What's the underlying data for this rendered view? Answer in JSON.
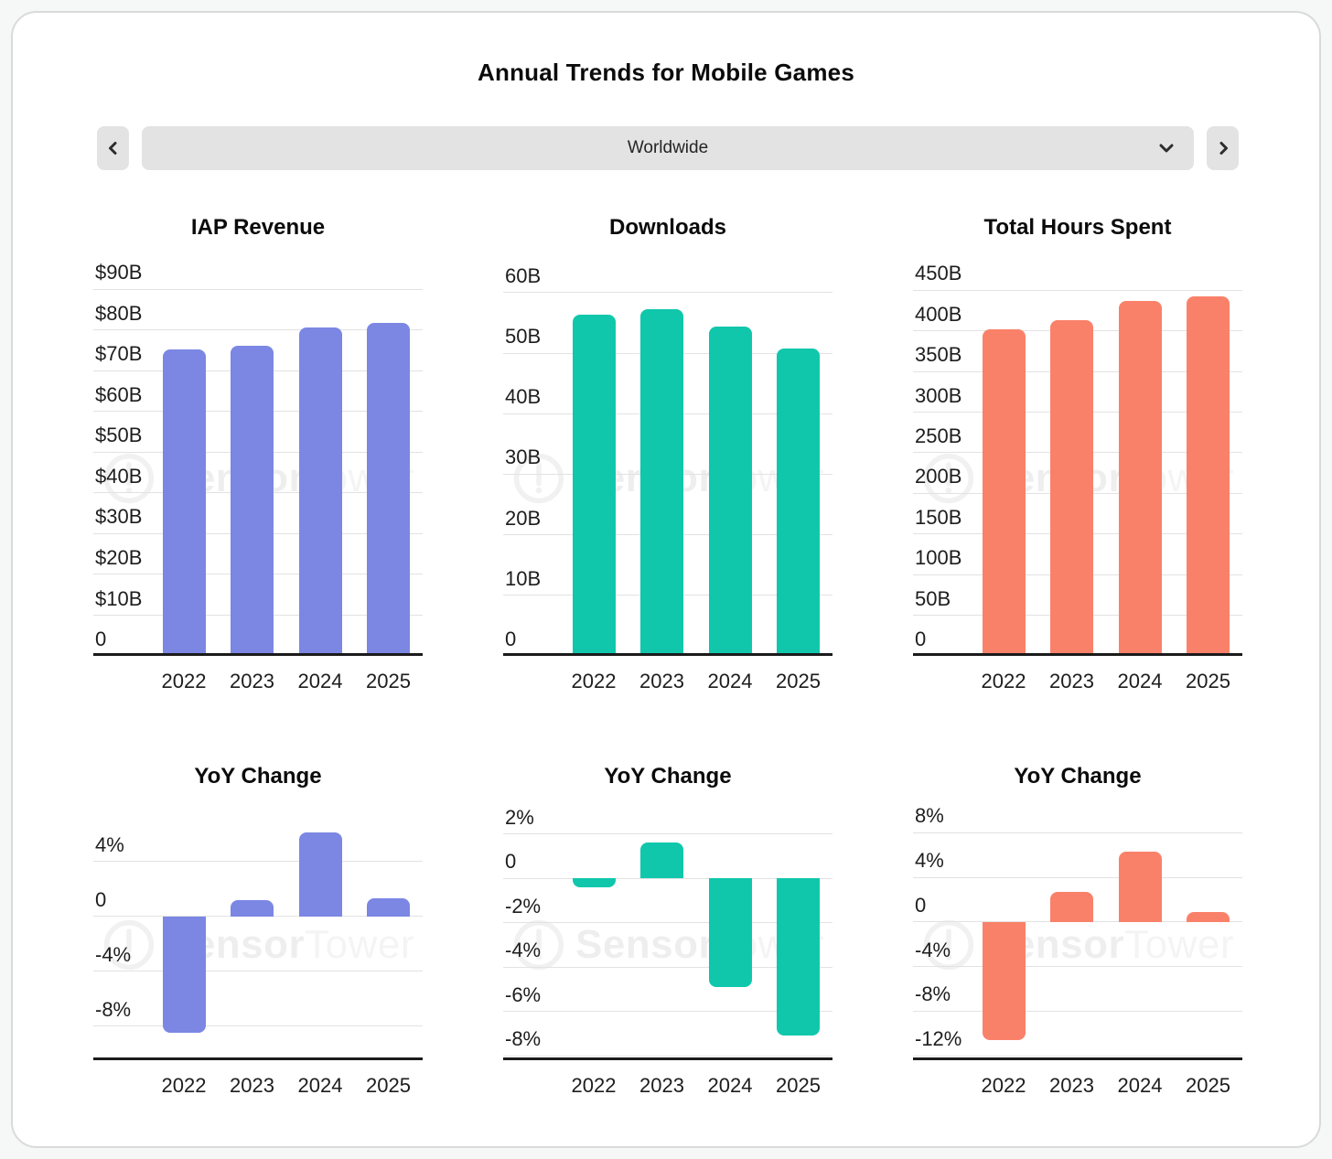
{
  "page": {
    "title": "Annual Trends for Mobile Games"
  },
  "nav": {
    "region_value": "Worldwide",
    "prev_icon": "chevron-left",
    "next_icon": "chevron-right",
    "dropdown_icon": "chevron-down"
  },
  "watermark": {
    "brand_bold": "Sensor",
    "brand_light": "Tower"
  },
  "chart_data": [
    {
      "id": "iap-revenue",
      "type": "bar",
      "row": 1,
      "title": "IAP Revenue",
      "color": "#7B87E3",
      "categories": [
        "2022",
        "2023",
        "2024",
        "2025"
      ],
      "values": [
        75.3,
        76.2,
        80.7,
        81.8
      ],
      "unit": "USD billions",
      "ylim": [
        0,
        91
      ],
      "yticks": [
        {
          "v": 90,
          "label": "$90B"
        },
        {
          "v": 80,
          "label": "$80B"
        },
        {
          "v": 70,
          "label": "$70B"
        },
        {
          "v": 60,
          "label": "$60B"
        },
        {
          "v": 50,
          "label": "$50B"
        },
        {
          "v": 40,
          "label": "$40B"
        },
        {
          "v": 30,
          "label": "$30B"
        },
        {
          "v": 20,
          "label": "$20B"
        },
        {
          "v": 10,
          "label": "$10B"
        },
        {
          "v": 0,
          "label": "0"
        }
      ]
    },
    {
      "id": "downloads",
      "type": "bar",
      "row": 1,
      "title": "Downloads",
      "color": "#10C7AC",
      "categories": [
        "2022",
        "2023",
        "2024",
        "2025"
      ],
      "values": [
        56.4,
        57.3,
        54.4,
        50.8
      ],
      "unit": "billions",
      "ylim": [
        0,
        61.2
      ],
      "yticks": [
        {
          "v": 60,
          "label": "60B"
        },
        {
          "v": 50,
          "label": "50B"
        },
        {
          "v": 40,
          "label": "40B"
        },
        {
          "v": 30,
          "label": "30B"
        },
        {
          "v": 20,
          "label": "20B"
        },
        {
          "v": 10,
          "label": "10B"
        },
        {
          "v": 0,
          "label": "0"
        }
      ]
    },
    {
      "id": "total-hours-spent",
      "type": "bar",
      "row": 1,
      "title": "Total Hours Spent",
      "color": "#FA8169",
      "categories": [
        "2022",
        "2023",
        "2024",
        "2025"
      ],
      "values": [
        402,
        413,
        437,
        442
      ],
      "unit": "billions",
      "ylim": [
        0,
        456
      ],
      "yticks": [
        {
          "v": 450,
          "label": "450B"
        },
        {
          "v": 400,
          "label": "400B"
        },
        {
          "v": 350,
          "label": "350B"
        },
        {
          "v": 300,
          "label": "300B"
        },
        {
          "v": 250,
          "label": "250B"
        },
        {
          "v": 200,
          "label": "200B"
        },
        {
          "v": 150,
          "label": "150B"
        },
        {
          "v": 100,
          "label": "100B"
        },
        {
          "v": 50,
          "label": "50B"
        },
        {
          "v": 0,
          "label": "0"
        }
      ]
    },
    {
      "id": "iap-revenue-yoy",
      "type": "bar",
      "row": 2,
      "title": "YoY Change",
      "color": "#7B87E3",
      "categories": [
        "2022",
        "2023",
        "2024",
        "2025"
      ],
      "values": [
        -8.5,
        1.2,
        6.1,
        1.3
      ],
      "unit": "percent",
      "ylim": [
        -10.5,
        7
      ],
      "yticks": [
        {
          "v": 4,
          "label": "4%"
        },
        {
          "v": 0,
          "label": "0"
        },
        {
          "v": -4,
          "label": "-4%"
        },
        {
          "v": -8,
          "label": "-8%"
        }
      ]
    },
    {
      "id": "downloads-yoy",
      "type": "bar",
      "row": 2,
      "title": "YoY Change",
      "color": "#10C7AC",
      "categories": [
        "2022",
        "2023",
        "2024",
        "2025"
      ],
      "values": [
        -0.4,
        1.6,
        -4.9,
        -7.1
      ],
      "unit": "percent",
      "ylim": [
        -8.2,
        2.6
      ],
      "yticks": [
        {
          "v": 2,
          "label": "2%"
        },
        {
          "v": 0,
          "label": "0"
        },
        {
          "v": -2,
          "label": "-2%"
        },
        {
          "v": -4,
          "label": "-4%"
        },
        {
          "v": -6,
          "label": "-6%"
        },
        {
          "v": -8,
          "label": "-8%"
        }
      ]
    },
    {
      "id": "total-hours-spent-yoy",
      "type": "bar",
      "row": 2,
      "title": "YoY Change",
      "color": "#FA8169",
      "categories": [
        "2022",
        "2023",
        "2024",
        "2025"
      ],
      "values": [
        -10.6,
        2.7,
        6.3,
        0.9
      ],
      "unit": "percent",
      "ylim": [
        -12.4,
        9.1
      ],
      "yticks": [
        {
          "v": 8,
          "label": "8%"
        },
        {
          "v": 4,
          "label": "4%"
        },
        {
          "v": 0,
          "label": "0"
        },
        {
          "v": -4,
          "label": "-4%"
        },
        {
          "v": -8,
          "label": "-8%"
        },
        {
          "v": -12,
          "label": "-12%"
        }
      ]
    }
  ]
}
